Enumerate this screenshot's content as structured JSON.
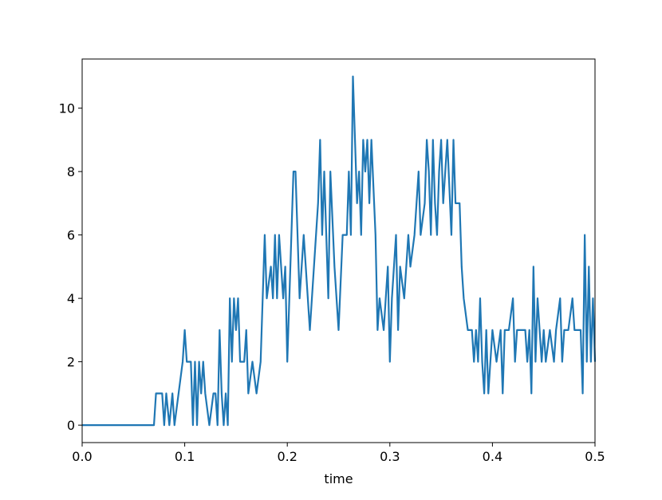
{
  "chart_data": {
    "type": "line",
    "xlabel": "time",
    "x": [
      0,
      0.07,
      0.072,
      0.078,
      0.08,
      0.082,
      0.085,
      0.088,
      0.09,
      0.094,
      0.098,
      0.1,
      0.102,
      0.106,
      0.108,
      0.11,
      0.112,
      0.114,
      0.116,
      0.118,
      0.12,
      0.124,
      0.128,
      0.13,
      0.132,
      0.134,
      0.136,
      0.138,
      0.14,
      0.142,
      0.144,
      0.146,
      0.148,
      0.15,
      0.152,
      0.154,
      0.158,
      0.16,
      0.162,
      0.166,
      0.17,
      0.174,
      0.176,
      0.178,
      0.18,
      0.184,
      0.186,
      0.188,
      0.19,
      0.192,
      0.194,
      0.196,
      0.198,
      0.2,
      0.204,
      0.206,
      0.208,
      0.21,
      0.212,
      0.216,
      0.22,
      0.222,
      0.226,
      0.23,
      0.232,
      0.234,
      0.236,
      0.238,
      0.24,
      0.242,
      0.246,
      0.25,
      0.254,
      0.258,
      0.26,
      0.262,
      0.264,
      0.266,
      0.268,
      0.27,
      0.272,
      0.274,
      0.276,
      0.278,
      0.28,
      0.282,
      0.286,
      0.288,
      0.29,
      0.294,
      0.298,
      0.3,
      0.302,
      0.306,
      0.308,
      0.31,
      0.314,
      0.318,
      0.32,
      0.324,
      0.326,
      0.328,
      0.33,
      0.334,
      0.336,
      0.338,
      0.34,
      0.342,
      0.344,
      0.346,
      0.348,
      0.35,
      0.352,
      0.356,
      0.36,
      0.362,
      0.364,
      0.368,
      0.37,
      0.372,
      0.376,
      0.38,
      0.382,
      0.384,
      0.386,
      0.388,
      0.39,
      0.392,
      0.394,
      0.396,
      0.4,
      0.404,
      0.408,
      0.41,
      0.412,
      0.416,
      0.42,
      0.422,
      0.424,
      0.432,
      0.434,
      0.436,
      0.438,
      0.44,
      0.442,
      0.444,
      0.446,
      0.448,
      0.45,
      0.452,
      0.456,
      0.46,
      0.462,
      0.466,
      0.468,
      0.47,
      0.474,
      0.478,
      0.48,
      0.486,
      0.488,
      0.49,
      0.492,
      0.494,
      0.496,
      0.498,
      0.5
    ],
    "series": [
      {
        "color": "#1f77b4",
        "values": [
          0,
          0,
          1,
          1,
          0,
          1,
          0,
          1,
          0,
          1,
          2,
          3,
          2,
          2,
          0,
          2,
          0,
          2,
          1,
          2,
          1,
          0,
          1,
          1,
          0,
          3,
          1,
          0,
          1,
          0,
          4,
          2,
          4,
          3,
          4,
          2,
          2,
          3,
          1,
          2,
          1,
          2,
          4,
          6,
          4,
          5,
          4,
          6,
          4,
          6,
          5,
          4,
          5,
          2,
          6,
          8,
          8,
          6,
          4,
          6,
          4,
          3,
          5,
          7,
          9,
          6,
          8,
          6,
          4,
          8,
          5,
          3,
          6,
          6,
          8,
          6,
          11,
          9,
          7,
          8,
          6,
          9,
          8,
          9,
          7,
          9,
          6,
          3,
          4,
          3,
          5,
          2,
          4,
          6,
          3,
          5,
          4,
          6,
          5,
          6,
          7,
          8,
          6,
          7,
          9,
          8,
          6,
          9,
          7,
          6,
          8,
          9,
          7,
          9,
          6,
          9,
          7,
          7,
          5,
          4,
          3,
          3,
          2,
          3,
          2,
          4,
          2,
          1,
          3,
          1,
          3,
          2,
          3,
          1,
          3,
          3,
          4,
          2,
          3,
          3,
          2,
          3,
          1,
          5,
          2,
          4,
          3,
          2,
          3,
          2,
          3,
          2,
          3,
          4,
          2,
          3,
          3,
          4,
          3,
          3,
          1,
          6,
          2,
          5,
          2,
          4,
          2
        ]
      }
    ],
    "xlim": [
      0,
      0.5
    ],
    "ylim": [
      -0.55,
      11.55
    ],
    "xticks": [
      {
        "value": 0,
        "label": "0.0"
      },
      0.1,
      0.2,
      0.3,
      0.4,
      0.5
    ],
    "yticks": [
      0,
      2,
      4,
      6,
      8,
      10
    ]
  }
}
